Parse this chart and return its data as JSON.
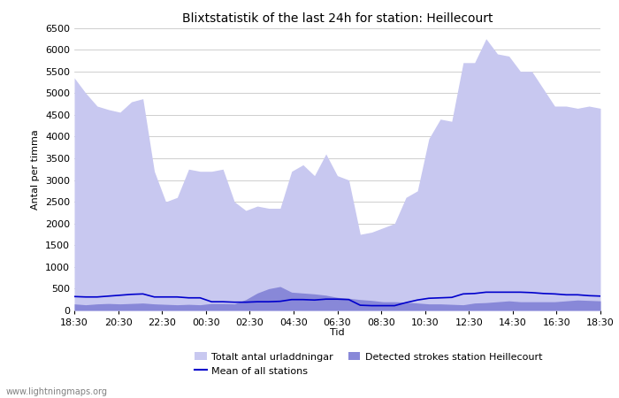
{
  "title": "Blixtstatistik of the last 24h for station: Heillecourt",
  "ylabel": "Antal per timma",
  "xlabel": "Tid",
  "watermark": "www.lightningmaps.org",
  "ylim": [
    0,
    6500
  ],
  "yticks": [
    0,
    500,
    1000,
    1500,
    2000,
    2500,
    3000,
    3500,
    4000,
    4500,
    5000,
    5500,
    6000,
    6500
  ],
  "xtick_labels": [
    "18:30",
    "20:30",
    "22:30",
    "00:30",
    "02:30",
    "04:30",
    "06:30",
    "08:30",
    "10:30",
    "12:30",
    "14:30",
    "16:30",
    "18:30"
  ],
  "legend_labels": [
    "Totalt antal urladdningar",
    "Detected strokes station Heillecourt",
    "Mean of all stations"
  ],
  "color_total": "#c8c8f0",
  "color_detected": "#8888d8",
  "color_mean": "#0000cc",
  "bg_color": "#ffffff",
  "grid_color": "#bbbbbb",
  "title_fontsize": 10,
  "axis_fontsize": 8,
  "tick_fontsize": 8,
  "total_urladdningar": [
    5350,
    5000,
    4700,
    4620,
    4560,
    4800,
    4870,
    3200,
    2500,
    2600,
    3250,
    3200,
    3200,
    3250,
    2500,
    2300,
    2400,
    2350,
    2350,
    3200,
    3350,
    3100,
    3600,
    3100,
    3000,
    1750,
    1800,
    1900,
    2000,
    2600,
    2750,
    3950,
    4400,
    4350,
    5700,
    5700,
    6250,
    5900,
    5850,
    5500,
    5500,
    5100,
    4700,
    4700,
    4650,
    4700,
    4650
  ],
  "detected_heillecourt": [
    150,
    130,
    150,
    160,
    150,
    160,
    170,
    150,
    140,
    130,
    140,
    130,
    160,
    160,
    150,
    250,
    400,
    500,
    550,
    420,
    400,
    380,
    350,
    300,
    280,
    250,
    230,
    200,
    200,
    190,
    170,
    150,
    150,
    140,
    130,
    170,
    180,
    200,
    220,
    200,
    200,
    200,
    200,
    220,
    240,
    230,
    220
  ],
  "mean_all_stations": [
    320,
    310,
    310,
    330,
    350,
    370,
    380,
    310,
    310,
    310,
    290,
    290,
    200,
    200,
    190,
    190,
    200,
    200,
    210,
    250,
    250,
    240,
    260,
    260,
    250,
    120,
    110,
    110,
    110,
    180,
    240,
    280,
    290,
    300,
    380,
    390,
    420,
    420,
    420,
    420,
    410,
    390,
    380,
    360,
    360,
    340,
    330
  ]
}
